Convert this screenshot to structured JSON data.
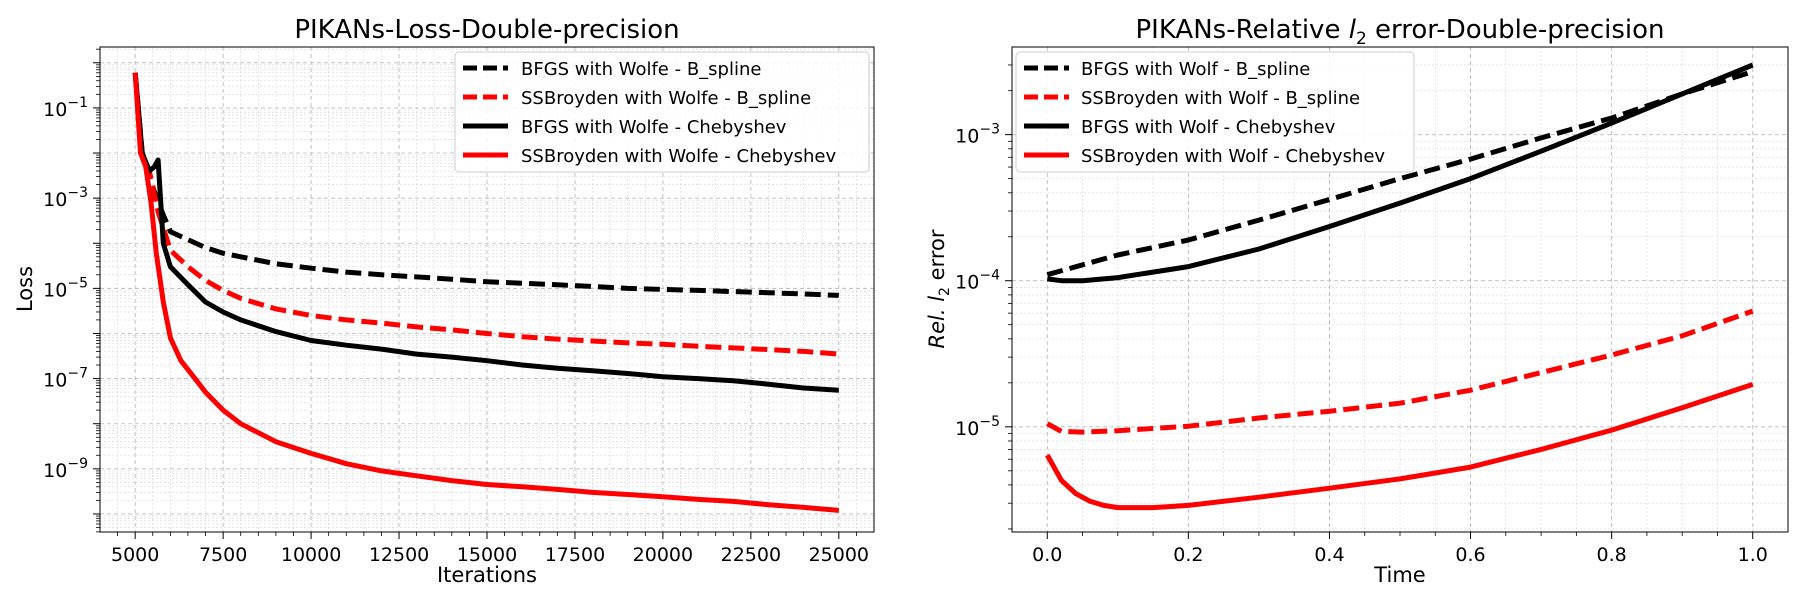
{
  "chart_data": [
    {
      "type": "line",
      "title": "PIKANs-Loss-Double-precision",
      "xlabel": "Iterations",
      "ylabel": "Loss",
      "xscale": "linear",
      "yscale": "log",
      "xlim": [
        4000,
        26000
      ],
      "ylim_log10": [
        -10.4,
        0.35
      ],
      "xticks": [
        5000,
        7500,
        10000,
        12500,
        15000,
        17500,
        20000,
        22500,
        25000
      ],
      "xtick_labels": [
        "5000",
        "7500",
        "10000",
        "12500",
        "15000",
        "17500",
        "20000",
        "22500",
        "25000"
      ],
      "ytick_exponents": [
        -1,
        -3,
        -5,
        -7,
        -9
      ],
      "ytick_labels": [
        "10",
        "10",
        "10",
        "10",
        "10"
      ],
      "ytick_superscripts": [
        "−1",
        "−3",
        "−5",
        "−7",
        "−9"
      ],
      "grid": true,
      "legend_position": "top-right",
      "series": [
        {
          "name": "BFGS with Wolfe - B_spline",
          "color": "#000000",
          "dash": "dashed",
          "x": [
            5000,
            5200,
            5400,
            5650,
            6000,
            6500,
            7000,
            7500,
            8000,
            9000,
            10000,
            11000,
            12000,
            13000,
            14000,
            15000,
            16000,
            17000,
            18000,
            19000,
            20000,
            21000,
            22000,
            23000,
            24000,
            25000
          ],
          "y": [
            0.6,
            0.01,
            0.003,
            0.0008,
            0.00018,
            0.00012,
            8e-05,
            6e-05,
            5e-05,
            3.5e-05,
            2.8e-05,
            2.3e-05,
            2e-05,
            1.8e-05,
            1.6e-05,
            1.4e-05,
            1.3e-05,
            1.2e-05,
            1.1e-05,
            1e-05,
            9.5e-06,
            9e-06,
            8.5e-06,
            8e-06,
            7.5e-06,
            7e-06
          ]
        },
        {
          "name": "SSBroyden with Wolfe - B_spline",
          "color": "#ff0000",
          "dash": "dashed",
          "x": [
            5000,
            5200,
            5400,
            5650,
            6000,
            6500,
            7000,
            7500,
            8000,
            9000,
            10000,
            11000,
            12000,
            13000,
            14000,
            15000,
            16000,
            17000,
            18000,
            19000,
            20000,
            21000,
            22000,
            23000,
            24000,
            25000
          ],
          "y": [
            0.6,
            0.01,
            0.004,
            0.0005,
            7e-05,
            3e-05,
            1.5e-05,
            9e-06,
            6e-06,
            3.5e-06,
            2.5e-06,
            2e-06,
            1.7e-06,
            1.4e-06,
            1.2e-06,
            1e-06,
            8.5e-07,
            7.5e-07,
            6.8e-07,
            6.2e-07,
            5.8e-07,
            5.2e-07,
            4.8e-07,
            4.4e-07,
            4e-07,
            3.5e-07
          ]
        },
        {
          "name": "BFGS with Wolfe - Chebyshev",
          "color": "#000000",
          "dash": "solid",
          "x": [
            5000,
            5200,
            5400,
            5550,
            5650,
            5800,
            6000,
            6500,
            7000,
            7500,
            8000,
            9000,
            10000,
            11000,
            12000,
            13000,
            14000,
            15000,
            16000,
            17000,
            18000,
            19000,
            20000,
            21000,
            22000,
            23000,
            24000,
            25000
          ],
          "y": [
            0.6,
            0.01,
            0.004,
            0.005,
            0.007,
            0.0001,
            3e-05,
            1.2e-05,
            5e-06,
            3e-06,
            2e-06,
            1.1e-06,
            7e-07,
            5.5e-07,
            4.5e-07,
            3.5e-07,
            3e-07,
            2.5e-07,
            2e-07,
            1.7e-07,
            1.5e-07,
            1.3e-07,
            1.1e-07,
            1e-07,
            9e-08,
            7.5e-08,
            6.2e-08,
            5.5e-08
          ]
        },
        {
          "name": "SSBroyden with Wolfe - Chebyshev",
          "color": "#ff0000",
          "dash": "solid",
          "x": [
            5000,
            5150,
            5300,
            5450,
            5600,
            5800,
            6000,
            6300,
            6700,
            7000,
            7500,
            8000,
            9000,
            10000,
            11000,
            12000,
            13000,
            14000,
            15000,
            16000,
            17000,
            18000,
            19000,
            20000,
            21000,
            22000,
            23000,
            24000,
            25000
          ],
          "y": [
            0.6,
            0.01,
            0.005,
            0.0008,
            6e-05,
            5e-06,
            8e-07,
            2.5e-07,
            1e-07,
            5e-08,
            2e-08,
            1e-08,
            4e-09,
            2.2e-09,
            1.3e-09,
            9e-10,
            7e-10,
            5.5e-10,
            4.5e-10,
            4e-10,
            3.5e-10,
            3e-10,
            2.7e-10,
            2.4e-10,
            2.1e-10,
            1.9e-10,
            1.6e-10,
            1.4e-10,
            1.2e-10
          ]
        }
      ]
    },
    {
      "type": "line",
      "title_prefix": "PIKANs-Relative ",
      "title_var": "l",
      "title_sub": "2",
      "title_suffix": " error-Double-precision",
      "xlabel": "Time",
      "ylabel_rel": "Rel.",
      "ylabel_var": "l",
      "ylabel_sub": "2",
      "ylabel_tail": " error",
      "xscale": "linear",
      "yscale": "log",
      "xlim": [
        -0.05,
        1.05
      ],
      "ylim_log10": [
        -5.72,
        -2.4
      ],
      "xticks": [
        0.0,
        0.2,
        0.4,
        0.6,
        0.8,
        1.0
      ],
      "xtick_labels": [
        "0.0",
        "0.2",
        "0.4",
        "0.6",
        "0.8",
        "1.0"
      ],
      "ytick_exponents": [
        -3,
        -4,
        -5
      ],
      "ytick_labels": [
        "10",
        "10",
        "10"
      ],
      "ytick_superscripts": [
        "−3",
        "−4",
        "−5"
      ],
      "grid": true,
      "legend_position": "top-left",
      "series": [
        {
          "name": "BFGS with Wolf - B_spline",
          "color": "#000000",
          "dash": "dashed",
          "x": [
            0,
            0.1,
            0.2,
            0.3,
            0.4,
            0.5,
            0.6,
            0.7,
            0.8,
            0.9,
            1.0
          ],
          "y": [
            0.00011,
            0.00015,
            0.00019,
            0.00026,
            0.00036,
            0.0005,
            0.00068,
            0.00095,
            0.0013,
            0.0019,
            0.0027
          ]
        },
        {
          "name": "SSBroyden with Wolf - B_spline",
          "color": "#ff0000",
          "dash": "dashed",
          "x": [
            0,
            0.02,
            0.05,
            0.1,
            0.2,
            0.3,
            0.4,
            0.5,
            0.6,
            0.7,
            0.8,
            0.9,
            1.0
          ],
          "y": [
            1.05e-05,
            9.3e-06,
            9.2e-06,
            9.4e-06,
            1.01e-05,
            1.15e-05,
            1.28e-05,
            1.45e-05,
            1.78e-05,
            2.35e-05,
            3.1e-05,
            4.2e-05,
            6.2e-05
          ]
        },
        {
          "name": "BFGS with Wolf - Chebyshev",
          "color": "#000000",
          "dash": "solid",
          "x": [
            0,
            0.02,
            0.05,
            0.1,
            0.2,
            0.3,
            0.4,
            0.5,
            0.6,
            0.7,
            0.8,
            0.9,
            1.0
          ],
          "y": [
            0.000103,
            0.0001,
            0.0001,
            0.000105,
            0.000125,
            0.000165,
            0.000235,
            0.00034,
            0.0005,
            0.00077,
            0.0012,
            0.0019,
            0.003
          ]
        },
        {
          "name": "SSBroyden with Wolf - Chebyshev",
          "color": "#ff0000",
          "dash": "solid",
          "x": [
            0,
            0.02,
            0.04,
            0.06,
            0.08,
            0.1,
            0.15,
            0.2,
            0.3,
            0.4,
            0.5,
            0.6,
            0.7,
            0.8,
            0.9,
            1.0
          ],
          "y": [
            6.4e-06,
            4.3e-06,
            3.5e-06,
            3.1e-06,
            2.9e-06,
            2.8e-06,
            2.8e-06,
            2.9e-06,
            3.3e-06,
            3.8e-06,
            4.4e-06,
            5.3e-06,
            7e-06,
            9.5e-06,
            1.35e-05,
            1.95e-05
          ]
        }
      ]
    }
  ]
}
